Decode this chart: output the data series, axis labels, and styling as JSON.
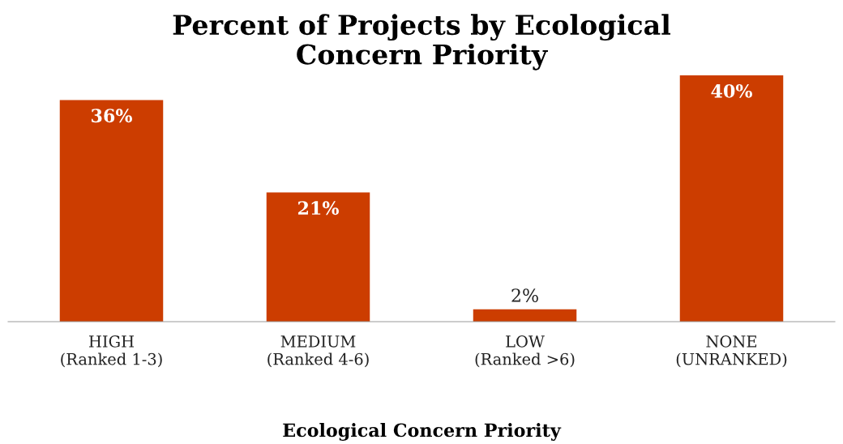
{
  "chart_data": {
    "type": "bar",
    "title": "Percent of Projects by Ecological\nConcern Priority",
    "xlabel": "Ecological Concern Priority",
    "categories": [
      "HIGH\n(Ranked 1-3)",
      "MEDIUM\n(Ranked 4-6)",
      "LOW\n(Ranked >6)",
      "NONE\n(UNRANKED)"
    ],
    "values": [
      36,
      21,
      2,
      40
    ],
    "value_labels": [
      "36%",
      "21%",
      "2%",
      "40%"
    ],
    "color": "#cc3d00",
    "ylim": [
      0,
      40
    ],
    "grid": false,
    "legend": false,
    "tick_labels": "x"
  }
}
